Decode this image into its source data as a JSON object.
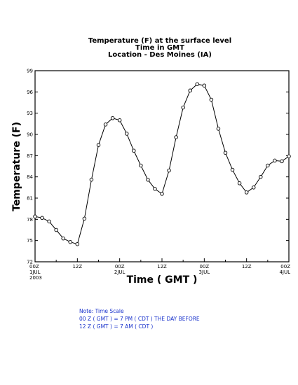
{
  "chart_data": {
    "type": "line",
    "title_lines": [
      "Temperature (F) at the surface level",
      "Time in GMT",
      "Location - Des Moines (IA)"
    ],
    "xlabel": "Time ( GMT )",
    "ylabel": "Temperature (F)",
    "ylim": [
      72,
      99
    ],
    "xlim": [
      0,
      72
    ],
    "y_ticks": [
      72,
      75,
      78,
      81,
      84,
      87,
      90,
      93,
      96,
      99
    ],
    "x_ticks": [
      {
        "x": 0,
        "lines": [
          "00Z",
          "1JUL",
          "2003"
        ]
      },
      {
        "x": 12,
        "lines": [
          "12Z"
        ]
      },
      {
        "x": 24,
        "lines": [
          "00Z",
          "2JUL"
        ]
      },
      {
        "x": 36,
        "lines": [
          "12Z"
        ]
      },
      {
        "x": 48,
        "lines": [
          "00Z",
          "3JUL"
        ]
      },
      {
        "x": 60,
        "lines": [
          "12Z"
        ]
      },
      {
        "x": 72,
        "lines": [
          "00Z",
          "4JUL"
        ]
      }
    ],
    "series": [
      {
        "x": [
          0,
          2,
          4,
          6,
          8,
          10,
          12,
          14,
          16,
          18,
          20,
          22,
          24,
          26,
          28,
          30,
          32,
          34,
          36,
          38,
          40,
          42,
          44,
          46,
          48,
          50,
          52,
          54,
          56,
          58,
          60,
          62,
          64,
          66,
          68,
          70,
          72
        ],
        "values": [
          78.4,
          78.2,
          77.7,
          76.5,
          75.3,
          74.8,
          74.5,
          78.1,
          83.6,
          88.5,
          91.4,
          92.3,
          92.0,
          90.1,
          87.7,
          85.6,
          83.6,
          82.3,
          81.6,
          84.9,
          89.6,
          93.8,
          96.2,
          97.1,
          96.9,
          94.9,
          90.8,
          87.4,
          85.0,
          83.1,
          81.8,
          82.5,
          84.0,
          85.6,
          86.3,
          86.2,
          86.9
        ]
      }
    ],
    "grid": false,
    "line_color": "#000000",
    "marker": "open-circle"
  },
  "note": {
    "lines": [
      "Note: Time Scale",
      "00 Z ( GMT ) = 7 PM ( CDT ) THE DAY BEFORE",
      "12 Z ( GMT ) = 7 AM ( CDT )"
    ],
    "color": "#1a33cc"
  }
}
